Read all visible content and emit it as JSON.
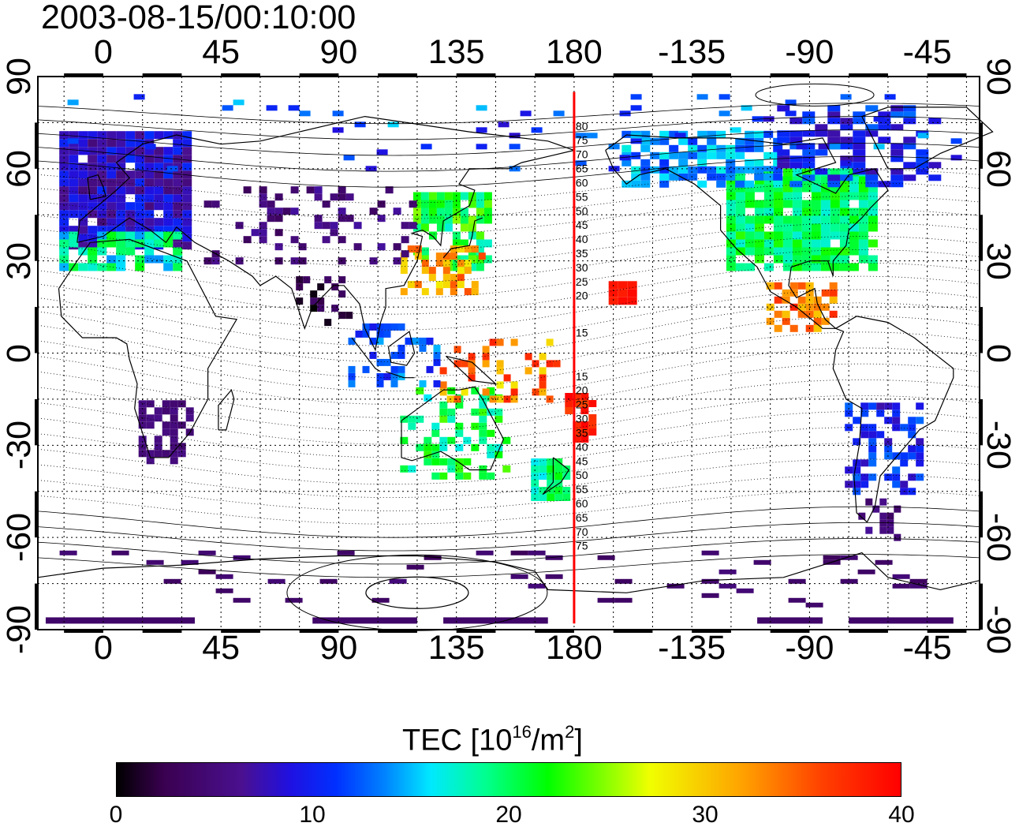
{
  "timestamp": "2003-08-15/00:10:00",
  "lon_ticks": [
    "0",
    "45",
    "90",
    "135",
    "180",
    "-135",
    "-90",
    "-45"
  ],
  "lat_ticks": [
    "90",
    "60",
    "30",
    "0",
    "-30",
    "-60",
    "-90"
  ],
  "magnetic_lat_labels": {
    "north": [
      "80",
      "75",
      "70",
      "65",
      "60",
      "55",
      "50",
      "45",
      "40",
      "35",
      "30",
      "25",
      "20",
      "15"
    ],
    "south": [
      "15",
      "20",
      "25",
      "30",
      "35",
      "40",
      "45",
      "50",
      "55",
      "60",
      "65",
      "70",
      "75"
    ]
  },
  "colorbar": {
    "title_prefix": "TEC  [10",
    "title_sup1": "16",
    "title_mid": "/m",
    "title_sup2": "2",
    "title_suffix": "]",
    "ticks": [
      "0",
      "10",
      "20",
      "30",
      "40"
    ],
    "min": 0,
    "max": 40
  },
  "map": {
    "lon_range": [
      -25,
      335
    ],
    "lat_range": [
      -90,
      90
    ],
    "reference_meridian_color": "#ff0000",
    "reference_meridian_lon": 180
  },
  "tec_regions": [
    {
      "name": "europe",
      "value": 8
    },
    {
      "name": "north-america",
      "value": 20
    },
    {
      "name": "alaska-canada",
      "value": 15
    },
    {
      "name": "japan",
      "value": 22
    },
    {
      "name": "east-asia-hot",
      "value": 33
    },
    {
      "name": "hawaii",
      "value": 39
    },
    {
      "name": "central-america",
      "value": 35
    },
    {
      "name": "australia",
      "value": 20
    },
    {
      "name": "new-zealand",
      "value": 19
    },
    {
      "name": "south-pacific-hot",
      "value": 38
    },
    {
      "name": "south-america",
      "value": 10
    },
    {
      "name": "southern-africa",
      "value": 5
    },
    {
      "name": "india",
      "value": 2
    },
    {
      "name": "antarctica",
      "value": 4
    }
  ]
}
